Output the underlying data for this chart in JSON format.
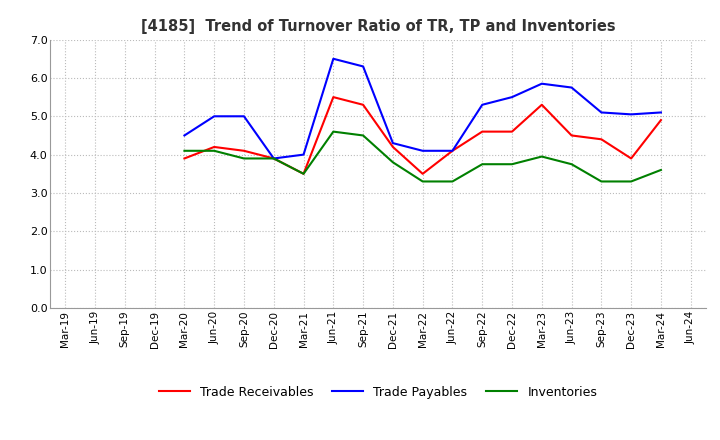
{
  "title": "[4185]  Trend of Turnover Ratio of TR, TP and Inventories",
  "x_labels": [
    "Mar-19",
    "Jun-19",
    "Sep-19",
    "Dec-19",
    "Mar-20",
    "Jun-20",
    "Sep-20",
    "Dec-20",
    "Mar-21",
    "Jun-21",
    "Sep-21",
    "Dec-21",
    "Mar-22",
    "Jun-22",
    "Sep-22",
    "Dec-22",
    "Mar-23",
    "Jun-23",
    "Sep-23",
    "Dec-23",
    "Mar-24",
    "Jun-24"
  ],
  "trade_receivables": [
    null,
    null,
    null,
    null,
    3.9,
    4.2,
    4.1,
    3.9,
    3.5,
    5.5,
    5.3,
    4.2,
    3.5,
    4.1,
    4.6,
    4.6,
    5.3,
    4.5,
    4.4,
    3.9,
    4.9,
    null
  ],
  "trade_payables": [
    null,
    null,
    null,
    null,
    4.5,
    5.0,
    5.0,
    3.9,
    4.0,
    6.5,
    6.3,
    4.3,
    4.1,
    4.1,
    5.3,
    5.5,
    5.85,
    5.75,
    5.1,
    5.05,
    5.1,
    null
  ],
  "inventories": [
    null,
    null,
    null,
    null,
    4.1,
    4.1,
    3.9,
    3.9,
    3.5,
    4.6,
    4.5,
    3.8,
    3.3,
    3.3,
    3.75,
    3.75,
    3.95,
    3.75,
    3.3,
    3.3,
    3.6,
    null
  ],
  "ylim": [
    0.0,
    7.0
  ],
  "yticks": [
    0.0,
    1.0,
    2.0,
    3.0,
    4.0,
    5.0,
    6.0,
    7.0
  ],
  "line_colors": {
    "trade_receivables": "#ff0000",
    "trade_payables": "#0000ff",
    "inventories": "#008000"
  },
  "legend_labels": [
    "Trade Receivables",
    "Trade Payables",
    "Inventories"
  ],
  "background_color": "#ffffff",
  "grid_color": "#bbbbbb"
}
